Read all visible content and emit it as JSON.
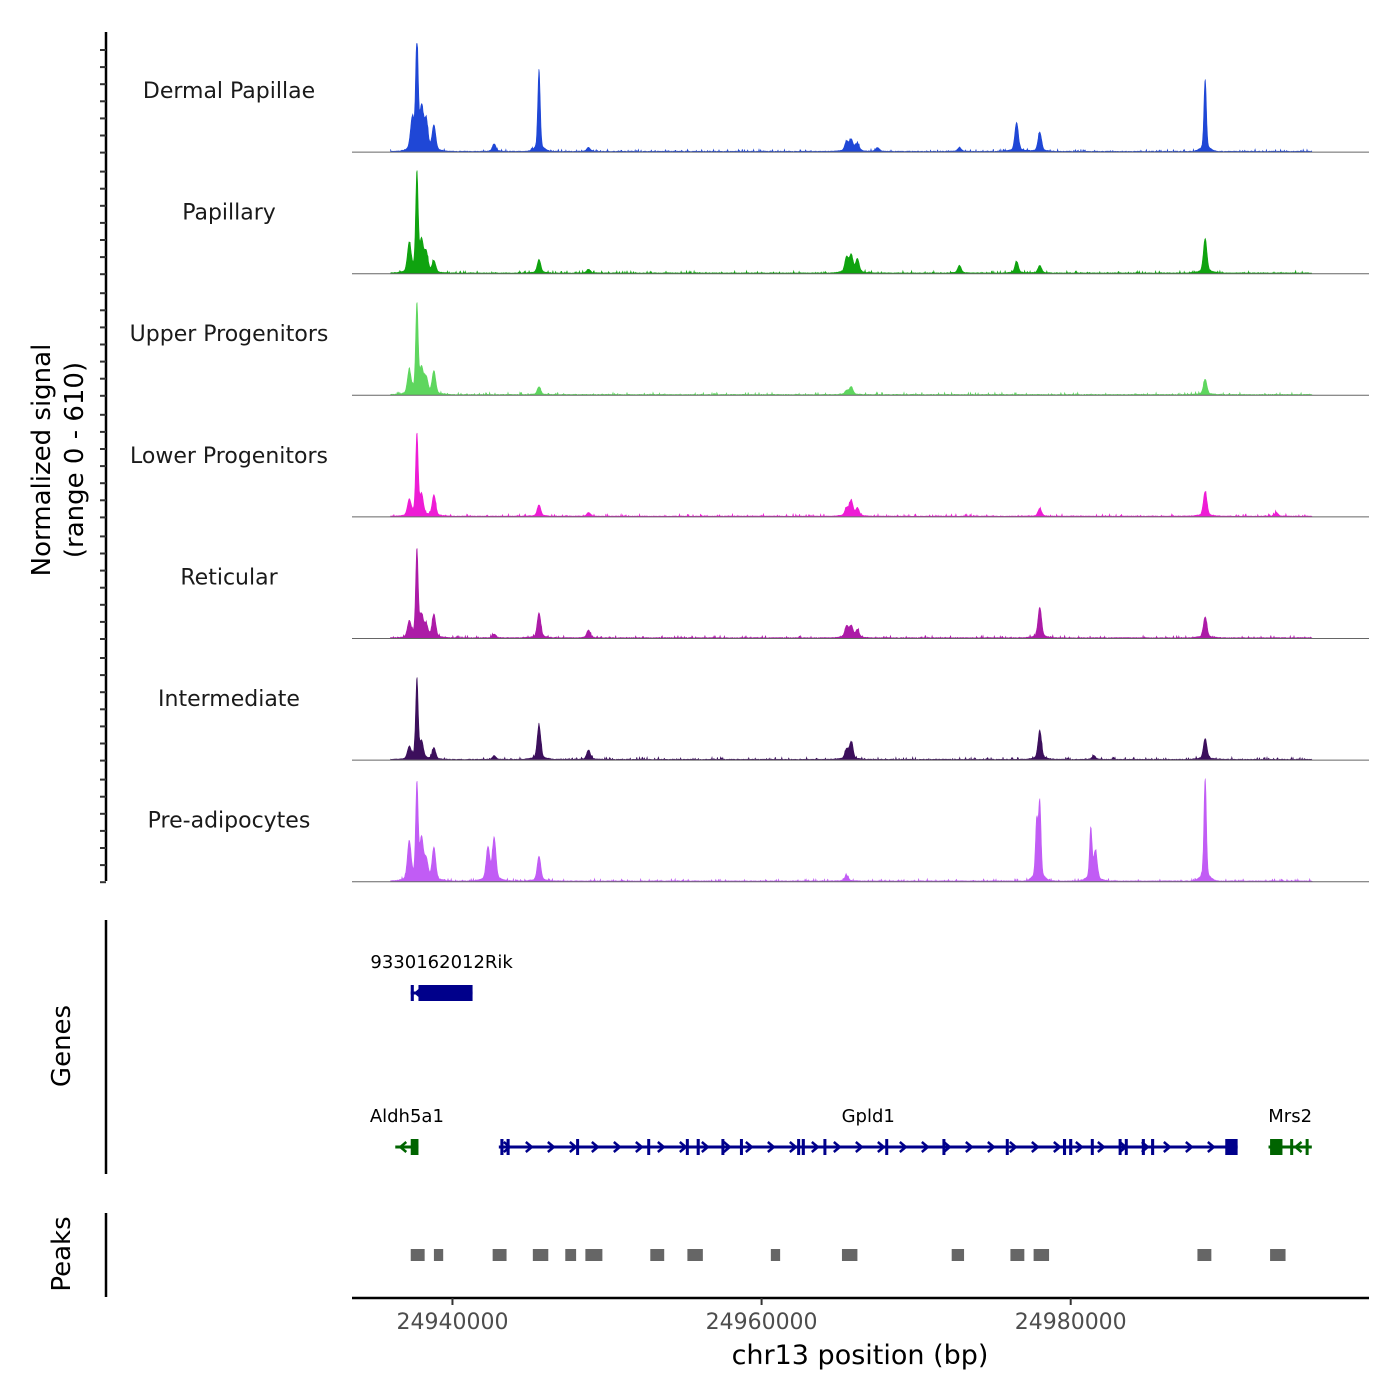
{
  "chart_data": {
    "type": "area",
    "title": "",
    "ylabel_line1": "Normalized signal",
    "ylabel_line2": "(range 0 - 610)",
    "yrange": [
      0,
      610
    ],
    "xlabel": "chr13 position (bp)",
    "xlim": [
      24933500,
      24999300
    ],
    "x_ticks": [
      24940000,
      24960000,
      24980000
    ],
    "x_tick_labels": [
      "24940000",
      "24960000",
      "24980000"
    ],
    "baseline_color": "#666666",
    "tracks": [
      {
        "name": "Dermal Papillae",
        "color": "#1f47d6",
        "peaks": [
          [
            24937400,
            150
          ],
          [
            24937700,
            600
          ],
          [
            24938000,
            200
          ],
          [
            24938300,
            150
          ],
          [
            24938800,
            130
          ],
          [
            24942700,
            40
          ],
          [
            24945600,
            430
          ],
          [
            24948800,
            20
          ],
          [
            24965500,
            50
          ],
          [
            24965800,
            60
          ],
          [
            24966200,
            40
          ],
          [
            24967500,
            20
          ],
          [
            24972800,
            20
          ],
          [
            24976500,
            150
          ],
          [
            24978000,
            100
          ],
          [
            24988700,
            380
          ]
        ]
      },
      {
        "name": "Papillary",
        "color": "#0fa30f",
        "peaks": [
          [
            24937200,
            150
          ],
          [
            24937700,
            520
          ],
          [
            24938000,
            150
          ],
          [
            24938300,
            100
          ],
          [
            24938800,
            60
          ],
          [
            24945600,
            70
          ],
          [
            24948800,
            20
          ],
          [
            24965500,
            80
          ],
          [
            24965800,
            90
          ],
          [
            24966200,
            70
          ],
          [
            24972800,
            40
          ],
          [
            24976500,
            60
          ],
          [
            24978000,
            40
          ],
          [
            24988700,
            180
          ]
        ]
      },
      {
        "name": "Upper Progenitors",
        "color": "#5ed65e",
        "peaks": [
          [
            24937200,
            120
          ],
          [
            24937700,
            470
          ],
          [
            24938000,
            120
          ],
          [
            24938300,
            80
          ],
          [
            24938800,
            120
          ],
          [
            24945600,
            40
          ],
          [
            24965500,
            20
          ],
          [
            24965800,
            40
          ],
          [
            24988700,
            80
          ]
        ]
      },
      {
        "name": "Lower Progenitors",
        "color": "#ee1cd5",
        "peaks": [
          [
            24937200,
            80
          ],
          [
            24937700,
            430
          ],
          [
            24938000,
            100
          ],
          [
            24938800,
            110
          ],
          [
            24945600,
            60
          ],
          [
            24948800,
            20
          ],
          [
            24965500,
            40
          ],
          [
            24965800,
            80
          ],
          [
            24966200,
            40
          ],
          [
            24978000,
            40
          ],
          [
            24988700,
            130
          ],
          [
            24993300,
            20
          ]
        ]
      },
      {
        "name": "Reticular",
        "color": "#ac1ba7",
        "peaks": [
          [
            24937200,
            80
          ],
          [
            24937700,
            460
          ],
          [
            24938000,
            100
          ],
          [
            24938300,
            60
          ],
          [
            24938800,
            120
          ],
          [
            24942700,
            20
          ],
          [
            24945600,
            130
          ],
          [
            24948800,
            40
          ],
          [
            24965500,
            60
          ],
          [
            24965800,
            60
          ],
          [
            24966200,
            40
          ],
          [
            24978000,
            160
          ],
          [
            24988700,
            110
          ]
        ]
      },
      {
        "name": "Intermediate",
        "color": "#3c0f5c",
        "peaks": [
          [
            24937200,
            60
          ],
          [
            24937700,
            420
          ],
          [
            24938000,
            80
          ],
          [
            24938800,
            60
          ],
          [
            24942700,
            20
          ],
          [
            24945600,
            180
          ],
          [
            24948800,
            50
          ],
          [
            24965500,
            50
          ],
          [
            24965800,
            90
          ],
          [
            24978000,
            150
          ],
          [
            24981500,
            20
          ],
          [
            24988700,
            110
          ]
        ]
      },
      {
        "name": "Pre-adipocytes",
        "color": "#c15cf5",
        "peaks": [
          [
            24937200,
            200
          ],
          [
            24937700,
            500
          ],
          [
            24938000,
            200
          ],
          [
            24938300,
            100
          ],
          [
            24938800,
            170
          ],
          [
            24942300,
            170
          ],
          [
            24942700,
            220
          ],
          [
            24945600,
            130
          ],
          [
            24965500,
            30
          ],
          [
            24977800,
            300
          ],
          [
            24978000,
            400
          ],
          [
            24981300,
            270
          ],
          [
            24981600,
            150
          ],
          [
            24988700,
            540
          ]
        ]
      }
    ],
    "genes_label": "Genes",
    "genes": [
      {
        "name": "9330162012Rik",
        "start": 24937300,
        "end": 24941300,
        "strand": "-",
        "color": "#00008b",
        "row": 1,
        "exons": [
          [
            24937300,
            24937500
          ],
          [
            24937800,
            24941300
          ]
        ]
      },
      {
        "name": "Aldh5a1",
        "start": 24936300,
        "end": 24937800,
        "strand": "-",
        "color": "#006400",
        "row": 2,
        "exons": [
          [
            24937300,
            24937800
          ]
        ]
      },
      {
        "name": "Gpld1",
        "start": 24943000,
        "end": 24990800,
        "strand": "+",
        "color": "#00008b",
        "row": 2,
        "exons": [
          [
            24943100,
            24943300
          ],
          [
            24943500,
            24943700
          ],
          [
            24948000,
            24948100
          ],
          [
            24952600,
            24952700
          ],
          [
            24955100,
            24955200
          ],
          [
            24955800,
            24956000
          ],
          [
            24957400,
            24957500
          ],
          [
            24958600,
            24958700
          ],
          [
            24962300,
            24962400
          ],
          [
            24962600,
            24962800
          ],
          [
            24964000,
            24964100
          ],
          [
            24968000,
            24968100
          ],
          [
            24971700,
            24971800
          ],
          [
            24975800,
            24975900
          ],
          [
            24979500,
            24979700
          ],
          [
            24979900,
            24980100
          ],
          [
            24981300,
            24981400
          ],
          [
            24983100,
            24983200
          ],
          [
            24983500,
            24983600
          ],
          [
            24984600,
            24984800
          ],
          [
            24985200,
            24985400
          ],
          [
            24990000,
            24990800
          ]
        ]
      },
      {
        "name": "Mrs2",
        "start": 24992800,
        "end": 24995600,
        "strand": "-",
        "color": "#006400",
        "row": 2,
        "exons": [
          [
            24992900,
            24993700
          ],
          [
            24994200,
            24994300
          ],
          [
            24995200,
            24995300
          ]
        ]
      }
    ],
    "peaks_label": "Peaks",
    "peak_color": "#666666",
    "peak_regions": [
      [
        24937300,
        24938200
      ],
      [
        24938800,
        24939400
      ],
      [
        24942600,
        24943500
      ],
      [
        24945200,
        24946200
      ],
      [
        24947300,
        24948000
      ],
      [
        24948600,
        24949700
      ],
      [
        24952800,
        24953700
      ],
      [
        24955200,
        24956200
      ],
      [
        24960600,
        24961200
      ],
      [
        24965200,
        24966200
      ],
      [
        24972300,
        24973100
      ],
      [
        24976100,
        24977000
      ],
      [
        24977600,
        24978600
      ],
      [
        24988200,
        24989100
      ],
      [
        24992900,
        24993900
      ]
    ]
  }
}
